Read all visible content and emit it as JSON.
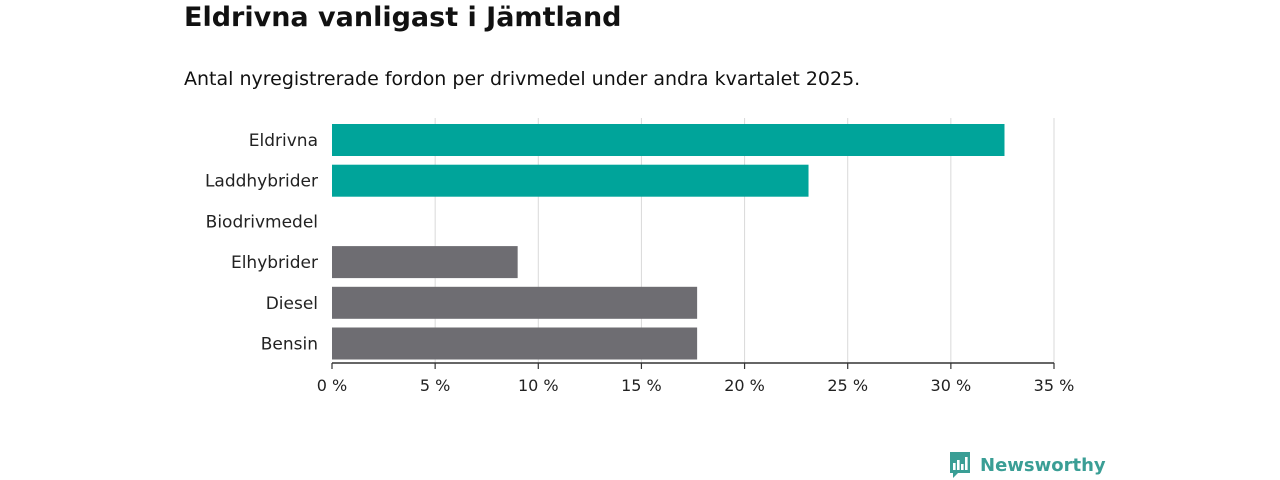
{
  "header": {
    "title": "Eldrivna vanligast i Jämtland",
    "subtitle": "Antal nyregistrerade fordon per drivmedel under andra kvartalet 2025."
  },
  "brand": {
    "name": "Newsworthy",
    "icon": "newsworthy-logo-icon",
    "color": "#3a9e95"
  },
  "chart_data": {
    "type": "bar",
    "orientation": "horizontal",
    "categories": [
      "Eldrivna",
      "Laddhybrider",
      "Biodrivmedel",
      "Elhybrider",
      "Diesel",
      "Bensin"
    ],
    "values": [
      32.6,
      23.1,
      0,
      9.0,
      17.7,
      17.7
    ],
    "colors": [
      "#00a49a",
      "#00a49a",
      "#00a49a",
      "#6e6d72",
      "#6e6d72",
      "#6e6d72"
    ],
    "xlim": [
      0,
      35
    ],
    "xticks": [
      0,
      5,
      10,
      15,
      20,
      25,
      30,
      35
    ],
    "xtick_labels": [
      "0 %",
      "5 %",
      "10 %",
      "15 %",
      "20 %",
      "25 %",
      "30 %",
      "35 %"
    ],
    "grid": true
  }
}
